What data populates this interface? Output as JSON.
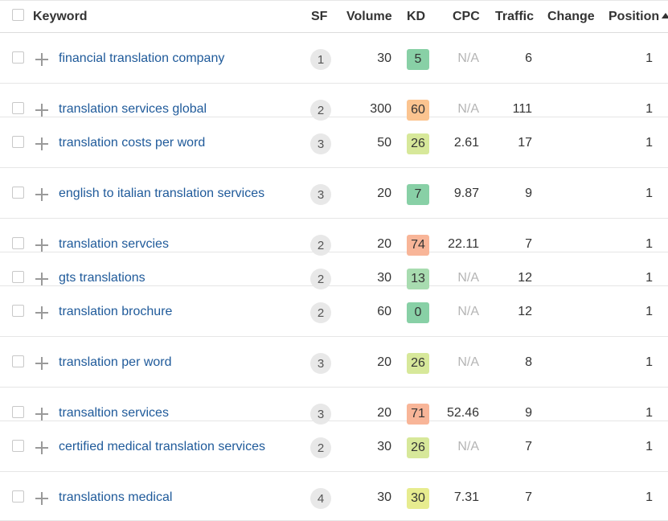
{
  "columns": {
    "keyword": "Keyword",
    "sf": "SF",
    "volume": "Volume",
    "kd": "KD",
    "cpc": "CPC",
    "traffic": "Traffic",
    "change": "Change",
    "position": "Position"
  },
  "sort": {
    "column": "position",
    "direction": "ascending"
  },
  "kd_colors": {
    "very_easy": "#88d0a6",
    "easy": "#a8dcb0",
    "medium_low": "#d7e89a",
    "medium": "#e7ec8f",
    "hard": "#fbc490",
    "very_hard": "#f8b598"
  },
  "rows": [
    {
      "keyword": "financial translation company",
      "sf": "1",
      "volume": "30",
      "kd": "5",
      "kd_level": "very_easy",
      "cpc": "N/A",
      "traffic": "6",
      "change": "",
      "position": "1"
    },
    {
      "keyword": "translation services global",
      "sf": "2",
      "volume": "300",
      "kd": "60",
      "kd_level": "hard",
      "cpc": "N/A",
      "traffic": "111",
      "change": "",
      "position": "1"
    },
    {
      "keyword": "translation costs per word",
      "sf": "3",
      "volume": "50",
      "kd": "26",
      "kd_level": "medium_low",
      "cpc": "2.61",
      "traffic": "17",
      "change": "",
      "position": "1"
    },
    {
      "keyword": "english to italian translation services",
      "sf": "3",
      "volume": "20",
      "kd": "7",
      "kd_level": "very_easy",
      "cpc": "9.87",
      "traffic": "9",
      "change": "",
      "position": "1"
    },
    {
      "keyword": "translation servcies",
      "sf": "2",
      "volume": "20",
      "kd": "74",
      "kd_level": "very_hard",
      "cpc": "22.11",
      "traffic": "7",
      "change": "",
      "position": "1"
    },
    {
      "keyword": "gts translations",
      "sf": "2",
      "volume": "30",
      "kd": "13",
      "kd_level": "easy",
      "cpc": "N/A",
      "traffic": "12",
      "change": "",
      "position": "1"
    },
    {
      "keyword": "translation brochure",
      "sf": "2",
      "volume": "60",
      "kd": "0",
      "kd_level": "very_easy",
      "cpc": "N/A",
      "traffic": "12",
      "change": "",
      "position": "1"
    },
    {
      "keyword": "translation per word",
      "sf": "3",
      "volume": "20",
      "kd": "26",
      "kd_level": "medium_low",
      "cpc": "N/A",
      "traffic": "8",
      "change": "",
      "position": "1"
    },
    {
      "keyword": "transaltion services",
      "sf": "3",
      "volume": "20",
      "kd": "71",
      "kd_level": "very_hard",
      "cpc": "52.46",
      "traffic": "9",
      "change": "",
      "position": "1"
    },
    {
      "keyword": "certified medical translation services",
      "sf": "2",
      "volume": "30",
      "kd": "26",
      "kd_level": "medium_low",
      "cpc": "N/A",
      "traffic": "7",
      "change": "",
      "position": "1"
    },
    {
      "keyword": "translations medical",
      "sf": "4",
      "volume": "30",
      "kd": "30",
      "kd_level": "medium",
      "cpc": "7.31",
      "traffic": "7",
      "change": "",
      "position": "1"
    }
  ]
}
